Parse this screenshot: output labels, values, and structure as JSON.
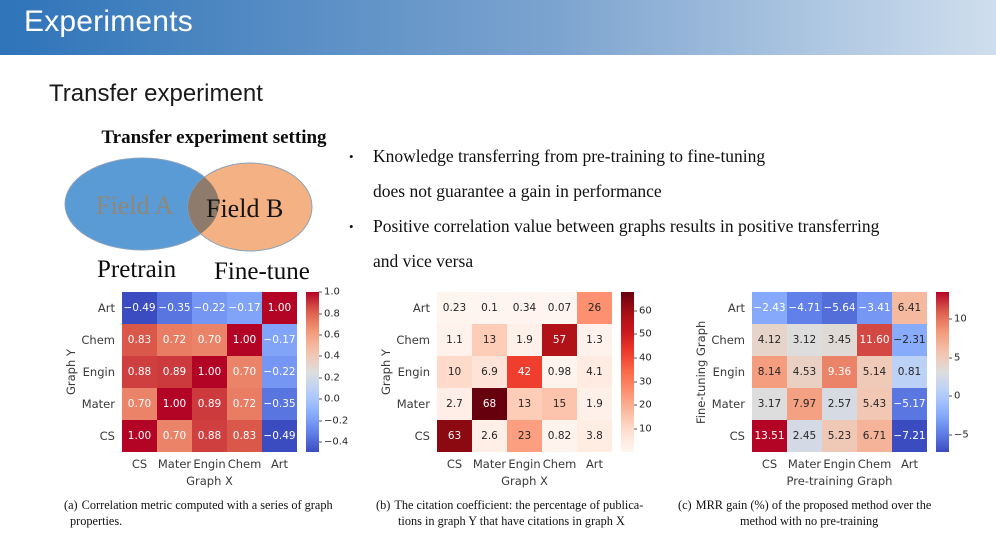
{
  "header": {
    "title": "Experiments",
    "gradient_left": "#2e74b9",
    "gradient_mid": "#7ba3cf",
    "gradient_right": "#cfdeee"
  },
  "section": {
    "title": "Transfer experiment"
  },
  "venn": {
    "title": "Transfer experiment setting",
    "left_label": "Field A",
    "right_label": "Field B",
    "left_caption": "Pretrain",
    "right_caption": "Fine-tune",
    "left_color": "#5b9bd5",
    "right_color": "#f4b183",
    "overlap_color": "#8f7b6b",
    "left_label_color": "#8f8877",
    "right_label_color": "#141414"
  },
  "bullets": [
    {
      "marker": "•",
      "line1": "Knowledge transferring from pre-training to fine-tuning",
      "line2": "does not guarantee a gain in performance"
    },
    {
      "marker": "•",
      "line1": "Positive correlation value between graphs results in positive transferring",
      "line2": "and vice versa"
    }
  ],
  "chart_data": [
    {
      "type": "heatmap",
      "colormap": "coolwarm",
      "xlabel": "Graph X",
      "ylabel": "Graph Y",
      "x_categories": [
        "CS",
        "Mater",
        "Engin",
        "Chem",
        "Art"
      ],
      "y_categories": [
        "Art",
        "Chem",
        "Engin",
        "Mater",
        "CS"
      ],
      "values": [
        [
          -0.49,
          -0.35,
          -0.22,
          -0.17,
          1.0
        ],
        [
          0.83,
          0.72,
          0.7,
          1.0,
          -0.17
        ],
        [
          0.88,
          0.89,
          1.0,
          0.7,
          -0.22
        ],
        [
          0.7,
          1.0,
          0.89,
          0.72,
          -0.35
        ],
        [
          1.0,
          0.7,
          0.88,
          0.83,
          -0.49
        ]
      ],
      "annot_fmt": ".2f",
      "vmin": -0.49,
      "vmax": 1.0,
      "colorbar_ticks": [
        {
          "label": "1.0",
          "value": 1.0
        },
        {
          "label": "0.8",
          "value": 0.8
        },
        {
          "label": "0.6",
          "value": 0.6
        },
        {
          "label": "0.4",
          "value": 0.4
        },
        {
          "label": "0.2",
          "value": 0.2
        },
        {
          "label": "0.0",
          "value": 0.0
        },
        {
          "label": "−0.2",
          "value": -0.2
        },
        {
          "label": "−0.4",
          "value": -0.4
        }
      ]
    },
    {
      "type": "heatmap",
      "colormap": "Reds",
      "xlabel": "Graph X",
      "ylabel": "Graph Y",
      "x_categories": [
        "CS",
        "Mater",
        "Engin",
        "Chem",
        "Art"
      ],
      "y_categories": [
        "Art",
        "Chem",
        "Engin",
        "Mater",
        "CS"
      ],
      "values": [
        [
          0.23,
          0.1,
          0.34,
          0.07,
          26
        ],
        [
          1.1,
          13,
          1.9,
          57,
          1.3
        ],
        [
          10,
          6.9,
          42,
          0.98,
          4.1
        ],
        [
          2.7,
          68,
          13,
          15,
          1.9
        ],
        [
          63,
          2.6,
          23,
          0.82,
          3.8
        ]
      ],
      "annot_fmt": ".2g",
      "vmin": 0.07,
      "vmax": 68,
      "colorbar_ticks": [
        {
          "label": "60",
          "value": 60
        },
        {
          "label": "50",
          "value": 50
        },
        {
          "label": "40",
          "value": 40
        },
        {
          "label": "30",
          "value": 30
        },
        {
          "label": "20",
          "value": 20
        },
        {
          "label": "10",
          "value": 10
        }
      ]
    },
    {
      "type": "heatmap",
      "colormap": "coolwarm",
      "xlabel": "Pre-training Graph",
      "ylabel": "Fine-tuning Graph",
      "x_categories": [
        "CS",
        "Mater",
        "Engin",
        "Chem",
        "Art"
      ],
      "y_categories": [
        "Art",
        "Chem",
        "Engin",
        "Mater",
        "CS"
      ],
      "values": [
        [
          -2.43,
          -4.71,
          -5.64,
          -3.41,
          6.41
        ],
        [
          4.12,
          3.12,
          3.45,
          11.6,
          -2.31
        ],
        [
          8.14,
          4.53,
          9.36,
          5.14,
          0.81
        ],
        [
          3.17,
          7.97,
          2.57,
          5.43,
          -5.17
        ],
        [
          13.51,
          2.45,
          5.23,
          6.71,
          -7.21
        ]
      ],
      "annot_fmt": ".2f",
      "vmin": -7.21,
      "vmax": 13.51,
      "colorbar_ticks": [
        {
          "label": "10",
          "value": 10
        },
        {
          "label": "5",
          "value": 5
        },
        {
          "label": "0",
          "value": 0
        },
        {
          "label": "−5",
          "value": -5
        }
      ]
    }
  ],
  "captions": [
    {
      "label": "(a)",
      "line1": "Correlation metric computed with a series of graph",
      "line2": "properties."
    },
    {
      "label": "(b)",
      "line1": "The citation coefficient: the percentage of publica-",
      "line2": "tions in graph Y that have citations in graph X"
    },
    {
      "label": "(c)",
      "line1": "MRR gain (%) of the proposed method over the",
      "line2": "method with no pre-training"
    }
  ]
}
